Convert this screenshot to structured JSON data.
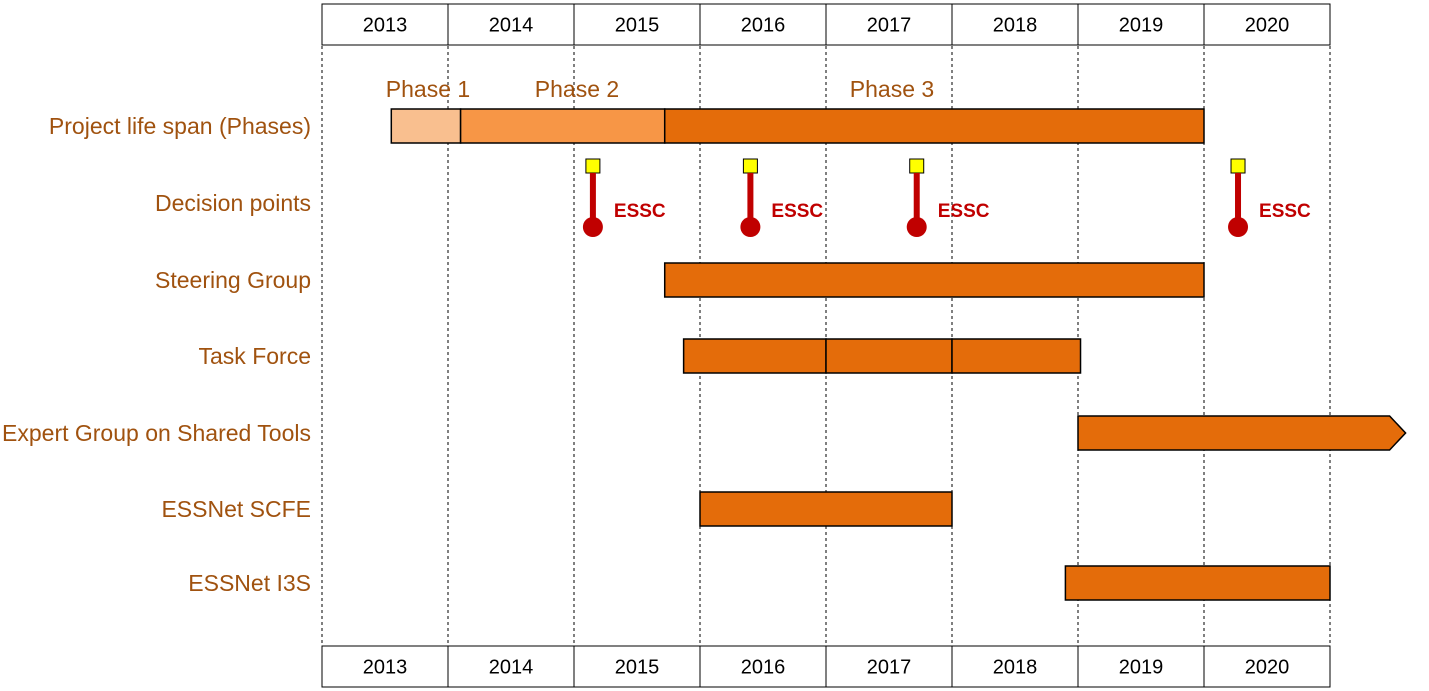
{
  "years": [
    "2013",
    "2014",
    "2015",
    "2016",
    "2017",
    "2018",
    "2019",
    "2020"
  ],
  "rows": [
    {
      "key": "phases",
      "label": "Project life span (Phases)"
    },
    {
      "key": "decisions",
      "label": "Decision points"
    },
    {
      "key": "steering",
      "label": "Steering Group"
    },
    {
      "key": "taskforce",
      "label": "Task Force"
    },
    {
      "key": "expert",
      "label": "Expert Group on Shared Tools"
    },
    {
      "key": "scfe",
      "label": "ESSNet SCFE"
    },
    {
      "key": "i3s",
      "label": "ESSNet I3S"
    }
  ],
  "phases": [
    {
      "label": "Phase 1",
      "start": 2013.55,
      "end": 2014.1,
      "color": "#f9bf8f"
    },
    {
      "label": "Phase 2",
      "start": 2014.1,
      "end": 2015.72,
      "color": "#f79646"
    },
    {
      "label": "Phase 3",
      "start": 2015.72,
      "end": 2020.0,
      "color": "#e46c0a"
    }
  ],
  "decision_points": [
    {
      "label": "ESSC",
      "time": 2015.15
    },
    {
      "label": "ESSC",
      "time": 2016.4
    },
    {
      "label": "ESSC",
      "time": 2017.72
    },
    {
      "label": "ESSC",
      "time": 2020.27
    }
  ],
  "bars": {
    "steering": [
      {
        "start": 2015.72,
        "end": 2020.0
      }
    ],
    "taskforce": [
      {
        "start": 2015.87,
        "end": 2017.0
      },
      {
        "start": 2017.0,
        "end": 2018.0
      },
      {
        "start": 2018.0,
        "end": 2019.02
      }
    ],
    "expert": [
      {
        "start": 2019.0,
        "end": 2021.6,
        "arrow": true
      }
    ],
    "scfe": [
      {
        "start": 2016.0,
        "end": 2018.0
      }
    ],
    "i3s": [
      {
        "start": 2018.9,
        "end": 2021.0
      }
    ]
  },
  "colors": {
    "bar": "#e46c0a",
    "label": "#a0520f",
    "marker": "#c00000",
    "marker_cap": "#ffff00",
    "grid": "#000000"
  }
}
